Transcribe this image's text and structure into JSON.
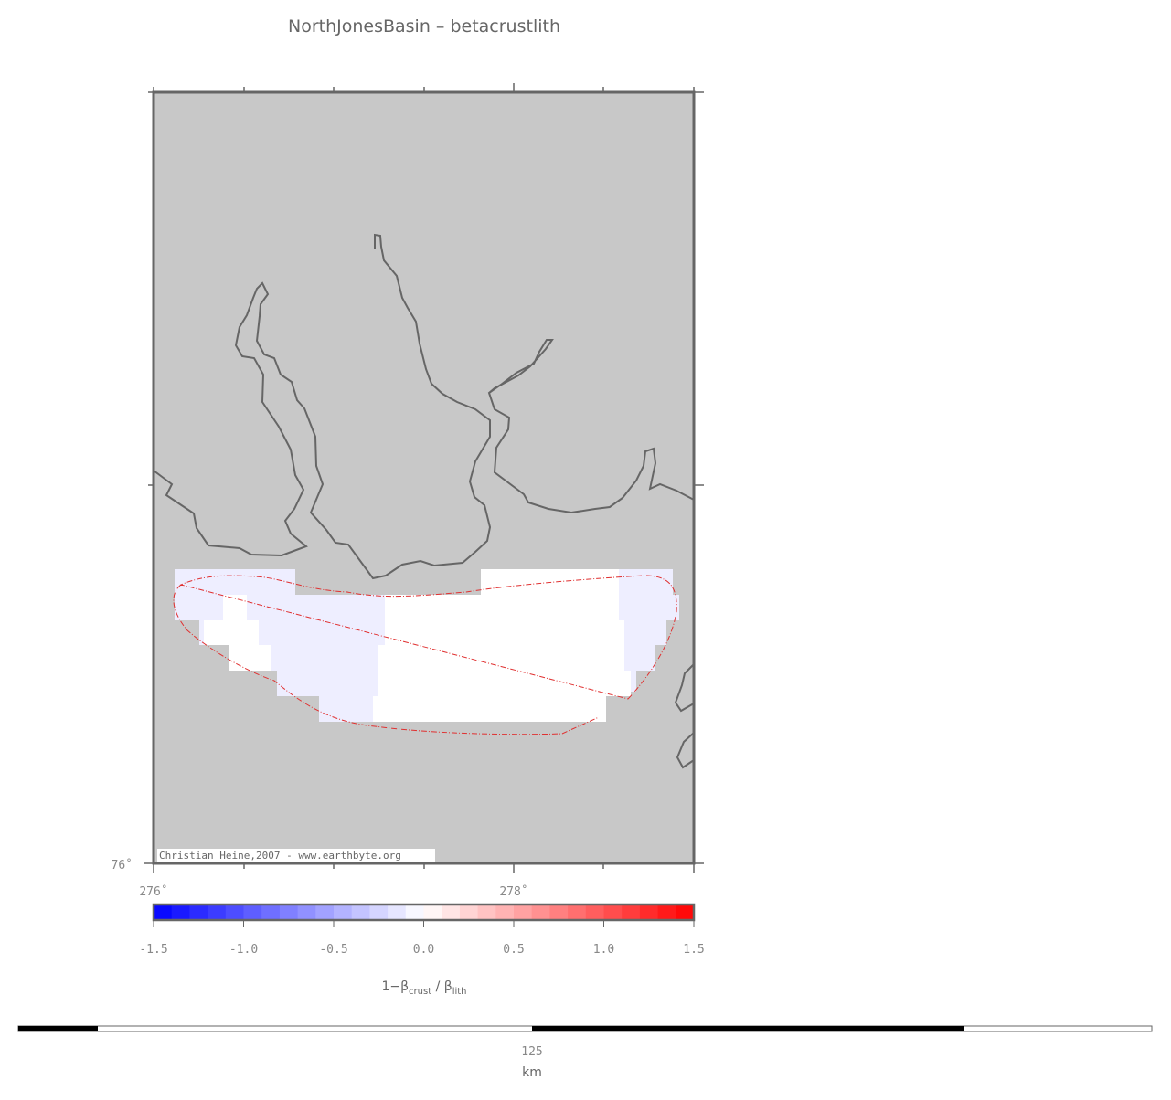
{
  "title": "NorthJonesBasin – betacrustlith",
  "map": {
    "latitude_label": "76˚",
    "longitude_labels": [
      "276˚",
      "278˚"
    ],
    "credit": "Christian Heine,2007 - www.earthbyte.org"
  },
  "colorbar": {
    "range": [
      -1.5,
      1.5
    ],
    "ticks": [
      {
        "value": -1.5,
        "label": "-1.5"
      },
      {
        "value": -1.0,
        "label": "-1.0"
      },
      {
        "value": -0.5,
        "label": "-0.5"
      },
      {
        "value": 0.0,
        "label": "0.0"
      },
      0.5,
      {
        "value": 1.0,
        "label": "1.0"
      },
      1.5
    ],
    "label": {
      "main": "1−β",
      "sub1": "crust",
      "sep": " / β",
      "sub2": "lith"
    }
  },
  "scale_bar": {
    "label": "125",
    "unit": "km"
  }
}
